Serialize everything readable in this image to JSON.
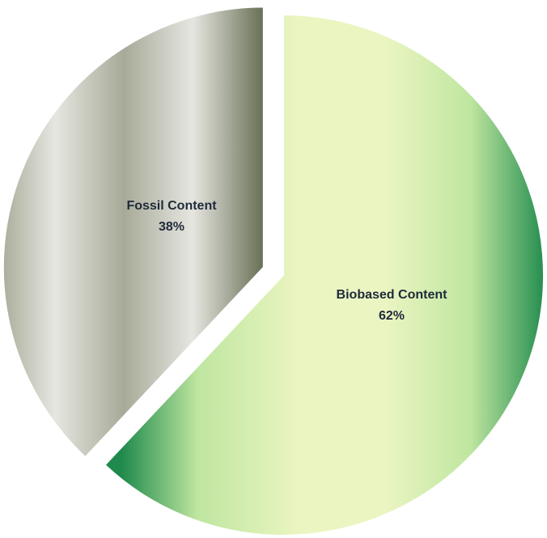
{
  "chart_data": {
    "type": "pie",
    "title": "",
    "slices": [
      {
        "label": "Biobased Content",
        "value": 62,
        "value_label": "62%",
        "colors": {
          "light": "#ebf5c2",
          "mid": "#bfe6a0",
          "dark": "#1f8a4c"
        },
        "exploded": false
      },
      {
        "label": "Fossil Content",
        "value": 38,
        "value_label": "38%",
        "colors": {
          "light": "#e6e6e0",
          "mid": "#a7aa98",
          "dark": "#525c3e"
        },
        "exploded": true
      }
    ],
    "legend": "none"
  }
}
